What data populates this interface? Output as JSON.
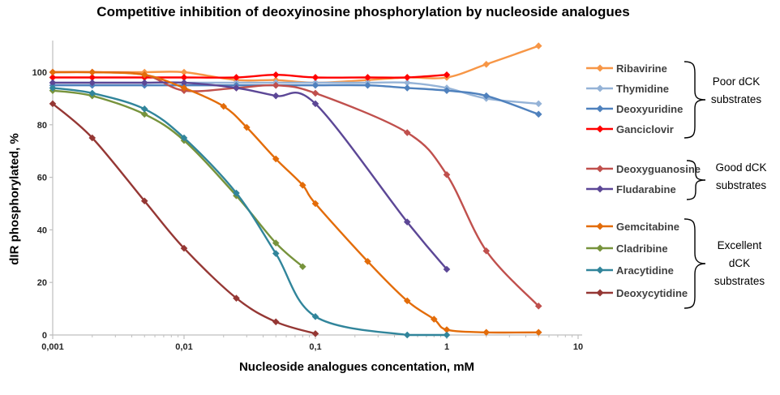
{
  "title": "Competitive inhibition of deoxyinosine phosphorylation by nucleoside analogues",
  "chart_data": {
    "type": "line",
    "title": "Competitive inhibition of deoxyinosine phosphorylation by nucleoside analogues",
    "xlabel": "Nucleoside analogues concentation, mM",
    "ylabel": "dIR phosphorylated, %",
    "x_scale": "log",
    "x_range": [
      0.001,
      10
    ],
    "y_range": [
      0,
      112
    ],
    "grid": false,
    "legend_position": "right",
    "x_axis": {
      "label": "Nucleoside analogues concentation, mM",
      "tick_values": [
        0.001,
        0.01,
        0.1,
        1,
        10
      ],
      "tick_labels": [
        "0,001",
        "0,01",
        "0,1",
        "1",
        "10"
      ]
    },
    "y_axis": {
      "label": "dIR phosphorylated, %",
      "tick_values": [
        0,
        20,
        40,
        60,
        80,
        100
      ],
      "tick_labels": [
        "0",
        "20",
        "40",
        "60",
        "80",
        "100"
      ]
    },
    "series": [
      {
        "name": "Ribavirine",
        "color": "#F79646",
        "group": "Poor dCK substrates",
        "points": [
          [
            0.001,
            100
          ],
          [
            0.002,
            100
          ],
          [
            0.005,
            100
          ],
          [
            0.01,
            100
          ],
          [
            0.025,
            97
          ],
          [
            0.05,
            97
          ],
          [
            0.1,
            96
          ],
          [
            0.25,
            97
          ],
          [
            0.5,
            98
          ],
          [
            1,
            98
          ],
          [
            2,
            103
          ],
          [
            5,
            110
          ]
        ]
      },
      {
        "name": "Thymidine",
        "color": "#95B3D7",
        "group": "Poor dCK substrates",
        "points": [
          [
            0.001,
            96
          ],
          [
            0.002,
            96
          ],
          [
            0.005,
            96
          ],
          [
            0.01,
            96
          ],
          [
            0.025,
            96
          ],
          [
            0.05,
            96
          ],
          [
            0.1,
            96
          ],
          [
            0.25,
            96
          ],
          [
            0.5,
            96
          ],
          [
            1,
            94
          ],
          [
            2,
            90
          ],
          [
            5,
            88
          ]
        ]
      },
      {
        "name": "Deoxyuridine",
        "color": "#4F81BD",
        "group": "Poor dCK substrates",
        "points": [
          [
            0.001,
            95
          ],
          [
            0.002,
            95
          ],
          [
            0.005,
            95
          ],
          [
            0.01,
            95
          ],
          [
            0.025,
            95
          ],
          [
            0.05,
            95
          ],
          [
            0.1,
            95
          ],
          [
            0.25,
            95
          ],
          [
            0.5,
            94
          ],
          [
            1,
            93
          ],
          [
            2,
            91
          ],
          [
            5,
            84
          ]
        ]
      },
      {
        "name": "Ganciclovir",
        "color": "#FF0000",
        "group": "Poor dCK substrates",
        "points": [
          [
            0.001,
            98
          ],
          [
            0.002,
            98
          ],
          [
            0.005,
            98
          ],
          [
            0.01,
            98
          ],
          [
            0.025,
            98
          ],
          [
            0.05,
            99
          ],
          [
            0.1,
            98
          ],
          [
            0.25,
            98
          ],
          [
            0.5,
            98
          ],
          [
            1,
            99
          ]
        ]
      },
      {
        "name": "Deoxyguanosine",
        "color": "#C0504D",
        "group": "Good dCK substrates",
        "points": [
          [
            0.001,
            100
          ],
          [
            0.002,
            100
          ],
          [
            0.005,
            99
          ],
          [
            0.01,
            93
          ],
          [
            0.025,
            94
          ],
          [
            0.05,
            95
          ],
          [
            0.1,
            92
          ],
          [
            0.5,
            77
          ],
          [
            1,
            61
          ],
          [
            2,
            32
          ],
          [
            5,
            11
          ]
        ]
      },
      {
        "name": "Fludarabine",
        "color": "#5C4796",
        "group": "Good dCK substrates",
        "points": [
          [
            0.001,
            96
          ],
          [
            0.002,
            96
          ],
          [
            0.005,
            96
          ],
          [
            0.01,
            96
          ],
          [
            0.025,
            94
          ],
          [
            0.05,
            91
          ],
          [
            0.1,
            88
          ],
          [
            0.5,
            43
          ],
          [
            1,
            25
          ]
        ]
      },
      {
        "name": "Gemcitabine",
        "color": "#E36C09",
        "group": "Excellent dCK substrates",
        "points": [
          [
            0.001,
            100
          ],
          [
            0.002,
            100
          ],
          [
            0.005,
            99
          ],
          [
            0.01,
            94
          ],
          [
            0.02,
            87
          ],
          [
            0.03,
            79
          ],
          [
            0.05,
            67
          ],
          [
            0.08,
            57
          ],
          [
            0.1,
            50
          ],
          [
            0.25,
            28
          ],
          [
            0.5,
            13
          ],
          [
            0.8,
            6
          ],
          [
            1,
            2
          ],
          [
            2,
            1
          ],
          [
            5,
            1
          ]
        ]
      },
      {
        "name": "Cladribine",
        "color": "#77933C",
        "group": "Excellent dCK substrates",
        "points": [
          [
            0.001,
            93
          ],
          [
            0.002,
            91
          ],
          [
            0.005,
            84
          ],
          [
            0.01,
            74
          ],
          [
            0.025,
            53
          ],
          [
            0.05,
            35
          ],
          [
            0.08,
            26
          ]
        ]
      },
      {
        "name": "Aracytidine",
        "color": "#31859B",
        "group": "Excellent dCK substrates",
        "points": [
          [
            0.001,
            94
          ],
          [
            0.002,
            92
          ],
          [
            0.005,
            86
          ],
          [
            0.01,
            75
          ],
          [
            0.025,
            54
          ],
          [
            0.05,
            31
          ],
          [
            0.1,
            7
          ],
          [
            0.5,
            0
          ],
          [
            1,
            0
          ]
        ]
      },
      {
        "name": "Deoxycytidine",
        "color": "#953734",
        "group": "Excellent dCK substrates",
        "points": [
          [
            0.001,
            88
          ],
          [
            0.002,
            75
          ],
          [
            0.005,
            51
          ],
          [
            0.01,
            33
          ],
          [
            0.025,
            14
          ],
          [
            0.05,
            5
          ],
          [
            0.1,
            0.5
          ]
        ]
      }
    ]
  },
  "legend": {
    "groups": [
      {
        "label": "Poor dCK substrates",
        "label_lines": [
          "Poor dCK",
          "substrates"
        ],
        "items": [
          "Ribavirine",
          "Thymidine",
          "Deoxyuridine",
          "Ganciclovir"
        ]
      },
      {
        "label": "Good dCK substrates",
        "label_lines": [
          "Good dCK",
          "substrates"
        ],
        "items": [
          "Deoxyguanosine",
          "Fludarabine"
        ]
      },
      {
        "label": "Excellent dCK substrates",
        "label_lines": [
          "Excellent",
          "dCK",
          "substrates"
        ],
        "items": [
          "Gemcitabine",
          "Cladribine",
          "Aracytidine",
          "Deoxycytidine"
        ]
      }
    ]
  }
}
